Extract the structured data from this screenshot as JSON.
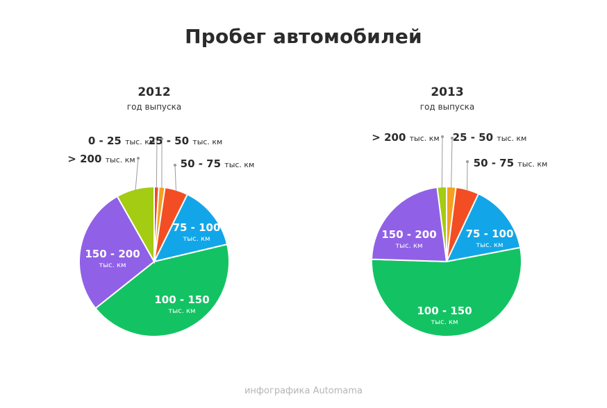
{
  "title": "Пробег автомобилей",
  "footer": "инфографика Automama",
  "chart_data": [
    {
      "type": "pie",
      "title": "2012",
      "subtitle": "год выпуска",
      "slices": [
        {
          "label": "0 - 25",
          "unit": "тыс. км",
          "value": 1.0,
          "color": "#f04a2a"
        },
        {
          "label": "25 - 50",
          "unit": "тыс. км",
          "value": 1.3,
          "color": "#f5a020"
        },
        {
          "label": "50 - 75",
          "unit": "тыс. км",
          "value": 5.0,
          "color": "#f34d23"
        },
        {
          "label": "75 - 100",
          "unit": "тыс. км",
          "value": 14.0,
          "color": "#12a6e8"
        },
        {
          "label": "100 - 150",
          "unit": "тыс. км",
          "value": 43.0,
          "color": "#13c363"
        },
        {
          "label": "150 - 200",
          "unit": "тыс. км",
          "value": 27.5,
          "color": "#9061e6"
        },
        {
          "label": "> 200",
          "unit": "тыс. км",
          "value": 8.2,
          "color": "#a3cc12"
        }
      ]
    },
    {
      "type": "pie",
      "title": "2013",
      "subtitle": "год выпуска",
      "slices": [
        {
          "label": "25 - 50",
          "unit": "тыс. км",
          "value": 2.0,
          "color": "#f5a020"
        },
        {
          "label": "50 - 75",
          "unit": "тыс. км",
          "value": 5.0,
          "color": "#f34d23"
        },
        {
          "label": "75 - 100",
          "unit": "тыс. км",
          "value": 15.0,
          "color": "#12a6e8"
        },
        {
          "label": "100 - 150",
          "unit": "тыс. км",
          "value": 53.5,
          "color": "#13c363"
        },
        {
          "label": "150 - 200",
          "unit": "тыс. км",
          "value": 22.5,
          "color": "#9061e6"
        },
        {
          "label": "> 200",
          "unit": "тыс. км",
          "value": 2.0,
          "color": "#a3cc12"
        }
      ]
    }
  ]
}
